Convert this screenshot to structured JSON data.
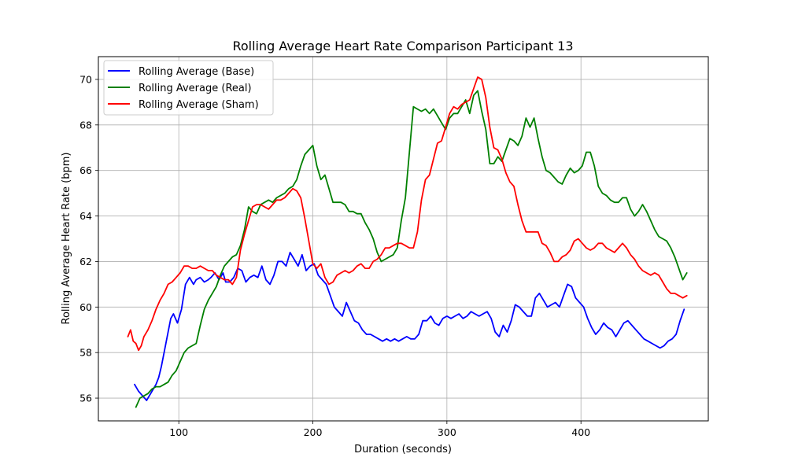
{
  "chart_data": {
    "type": "line",
    "title": "Rolling Average Heart Rate Comparison Participant 13",
    "xlabel": "Duration (seconds)",
    "ylabel": "Rolling Average Heart Rate (bpm)",
    "xlim": [
      40,
      495
    ],
    "ylim": [
      55,
      71
    ],
    "xticks": [
      100,
      200,
      300,
      400
    ],
    "yticks": [
      56,
      58,
      60,
      62,
      64,
      66,
      68,
      70
    ],
    "grid": true,
    "legend_position": "upper-left",
    "series": [
      {
        "name": "Rolling Average (Base)",
        "color": "#0000ff",
        "x": [
          67,
          70,
          73,
          76,
          78,
          80,
          83,
          85,
          87,
          89,
          92,
          94,
          96,
          99,
          102,
          105,
          108,
          111,
          113,
          116,
          119,
          122,
          124,
          127,
          130,
          133,
          135,
          138,
          141,
          144,
          147,
          150,
          153,
          156,
          159,
          162,
          165,
          168,
          171,
          174,
          177,
          180,
          183,
          186,
          189,
          192,
          195,
          198,
          201,
          204,
          207,
          210,
          213,
          216,
          219,
          222,
          225,
          228,
          231,
          234,
          237,
          240,
          243,
          246,
          249,
          252,
          255,
          258,
          261,
          264,
          267,
          270,
          273,
          276,
          279,
          282,
          285,
          288,
          291,
          294,
          297,
          300,
          303,
          306,
          309,
          312,
          315,
          318,
          321,
          324,
          327,
          330,
          333,
          336,
          339,
          342,
          345,
          348,
          351,
          354,
          357,
          360,
          363,
          366,
          369,
          372,
          375,
          378,
          381,
          384,
          387,
          390,
          393,
          396,
          399,
          402,
          405,
          408,
          411,
          414,
          417,
          420,
          423,
          426,
          429,
          432,
          435,
          438,
          441,
          444,
          447,
          450,
          453,
          456,
          459,
          462,
          465,
          468,
          471,
          474,
          477
        ],
        "values": [
          56.6,
          56.3,
          56.1,
          55.9,
          56.1,
          56.3,
          56.6,
          56.9,
          57.4,
          58.0,
          58.9,
          59.5,
          59.7,
          59.3,
          59.9,
          61.0,
          61.3,
          61.0,
          61.2,
          61.3,
          61.1,
          61.2,
          61.3,
          61.5,
          61.2,
          61.5,
          61.1,
          61.1,
          61.3,
          61.7,
          61.6,
          61.1,
          61.3,
          61.4,
          61.3,
          61.8,
          61.2,
          61.0,
          61.4,
          62.0,
          62.0,
          61.8,
          62.4,
          62.1,
          61.8,
          62.3,
          61.6,
          61.8,
          61.9,
          61.4,
          61.2,
          61.0,
          60.5,
          60.0,
          59.8,
          59.6,
          60.2,
          59.8,
          59.4,
          59.3,
          59.0,
          58.8,
          58.8,
          58.7,
          58.6,
          58.5,
          58.6,
          58.5,
          58.6,
          58.5,
          58.6,
          58.7,
          58.6,
          58.6,
          58.8,
          59.4,
          59.4,
          59.6,
          59.3,
          59.2,
          59.5,
          59.6,
          59.5,
          59.6,
          59.7,
          59.5,
          59.6,
          59.8,
          59.7,
          59.6,
          59.7,
          59.8,
          59.5,
          58.9,
          58.7,
          59.2,
          58.9,
          59.4,
          60.1,
          60.0,
          59.8,
          59.6,
          59.6,
          60.4,
          60.6,
          60.3,
          60.0,
          60.1,
          60.2,
          60.0,
          60.5,
          61.0,
          60.9,
          60.4,
          60.2,
          60.0,
          59.5,
          59.1,
          58.8,
          59.0,
          59.3,
          59.1,
          59.0,
          58.7,
          59.0,
          59.3,
          59.4,
          59.2,
          59.0,
          58.8,
          58.6,
          58.5,
          58.4,
          58.3,
          58.2,
          58.3,
          58.5,
          58.6,
          58.8,
          59.4,
          59.9
        ]
      },
      {
        "name": "Rolling Average (Real)",
        "color": "#008000",
        "x": [
          68,
          71,
          74,
          77,
          80,
          83,
          86,
          89,
          92,
          95,
          98,
          101,
          104,
          107,
          110,
          113,
          116,
          119,
          122,
          125,
          128,
          131,
          134,
          137,
          140,
          143,
          146,
          149,
          152,
          155,
          158,
          161,
          164,
          167,
          170,
          173,
          176,
          179,
          182,
          185,
          188,
          191,
          194,
          197,
          200,
          203,
          206,
          209,
          212,
          215,
          218,
          221,
          224,
          227,
          230,
          233,
          236,
          239,
          242,
          245,
          248,
          251,
          254,
          257,
          260,
          263,
          266,
          269,
          272,
          275,
          278,
          281,
          284,
          287,
          290,
          293,
          296,
          299,
          302,
          305,
          308,
          311,
          314,
          317,
          320,
          323,
          326,
          329,
          332,
          335,
          338,
          341,
          344,
          347,
          350,
          353,
          356,
          359,
          362,
          365,
          368,
          371,
          374,
          377,
          380,
          383,
          386,
          389,
          392,
          395,
          398,
          401,
          404,
          407,
          410,
          413,
          416,
          419,
          422,
          425,
          428,
          431,
          434,
          437,
          440,
          443,
          446,
          449,
          452,
          455,
          458,
          461,
          464,
          467,
          470,
          473,
          476,
          479
        ],
        "values": [
          55.6,
          56.0,
          56.1,
          56.2,
          56.4,
          56.5,
          56.5,
          56.6,
          56.7,
          57.0,
          57.2,
          57.6,
          58.0,
          58.2,
          58.3,
          58.4,
          59.2,
          59.9,
          60.3,
          60.6,
          60.9,
          61.4,
          61.8,
          62.0,
          62.2,
          62.3,
          62.7,
          63.4,
          64.4,
          64.2,
          64.1,
          64.5,
          64.6,
          64.7,
          64.6,
          64.8,
          64.9,
          65.0,
          65.2,
          65.3,
          65.6,
          66.2,
          66.7,
          66.9,
          67.1,
          66.2,
          65.6,
          65.8,
          65.2,
          64.6,
          64.6,
          64.6,
          64.5,
          64.2,
          64.2,
          64.1,
          64.1,
          63.7,
          63.4,
          63.0,
          62.4,
          62.0,
          62.1,
          62.2,
          62.3,
          62.6,
          63.8,
          64.8,
          66.8,
          68.8,
          68.7,
          68.6,
          68.7,
          68.5,
          68.7,
          68.4,
          68.1,
          67.8,
          68.3,
          68.5,
          68.5,
          68.8,
          69.1,
          68.5,
          69.3,
          69.5,
          68.6,
          67.8,
          66.3,
          66.3,
          66.6,
          66.4,
          66.9,
          67.4,
          67.3,
          67.1,
          67.5,
          68.3,
          67.9,
          68.3,
          67.4,
          66.6,
          66.0,
          65.9,
          65.7,
          65.5,
          65.4,
          65.8,
          66.1,
          65.9,
          66.0,
          66.2,
          66.8,
          66.8,
          66.2,
          65.3,
          65.0,
          64.9,
          64.7,
          64.6,
          64.6,
          64.8,
          64.8,
          64.3,
          64.0,
          64.2,
          64.5,
          64.2,
          63.8,
          63.4,
          63.1,
          63.0,
          62.9,
          62.6,
          62.2,
          61.7,
          61.2,
          61.5
        ]
      },
      {
        "name": "Rolling Average (Sham)",
        "color": "#ff0000",
        "x": [
          62,
          64,
          66,
          68,
          70,
          72,
          74,
          77,
          80,
          83,
          86,
          89,
          92,
          95,
          98,
          101,
          104,
          107,
          110,
          113,
          116,
          119,
          122,
          125,
          128,
          131,
          134,
          137,
          140,
          143,
          146,
          149,
          152,
          155,
          158,
          161,
          164,
          167,
          170,
          173,
          176,
          179,
          182,
          185,
          188,
          191,
          194,
          197,
          200,
          203,
          206,
          209,
          212,
          215,
          218,
          221,
          224,
          227,
          230,
          233,
          236,
          239,
          242,
          245,
          248,
          251,
          254,
          257,
          260,
          263,
          266,
          269,
          272,
          275,
          278,
          281,
          284,
          287,
          290,
          293,
          296,
          299,
          302,
          305,
          308,
          311,
          314,
          317,
          320,
          323,
          326,
          329,
          332,
          335,
          338,
          341,
          344,
          347,
          350,
          353,
          356,
          359,
          362,
          365,
          368,
          371,
          374,
          377,
          380,
          383,
          386,
          389,
          392,
          395,
          398,
          401,
          404,
          407,
          410,
          413,
          416,
          419,
          422,
          425,
          428,
          431,
          434,
          437,
          440,
          443,
          446,
          449,
          452,
          455,
          458,
          461,
          464,
          467,
          470,
          473,
          476,
          479
        ],
        "values": [
          58.7,
          59.0,
          58.5,
          58.4,
          58.1,
          58.3,
          58.7,
          59.0,
          59.4,
          59.9,
          60.3,
          60.6,
          61.0,
          61.1,
          61.3,
          61.5,
          61.8,
          61.8,
          61.7,
          61.7,
          61.8,
          61.7,
          61.6,
          61.6,
          61.4,
          61.3,
          61.2,
          61.2,
          61.0,
          61.3,
          62.5,
          63.2,
          63.8,
          64.4,
          64.5,
          64.5,
          64.4,
          64.3,
          64.5,
          64.7,
          64.7,
          64.8,
          65.0,
          65.2,
          65.1,
          64.8,
          63.9,
          62.9,
          61.9,
          61.7,
          61.9,
          61.3,
          61.0,
          61.1,
          61.4,
          61.5,
          61.6,
          61.5,
          61.6,
          61.8,
          61.9,
          61.7,
          61.7,
          62.0,
          62.1,
          62.3,
          62.6,
          62.6,
          62.7,
          62.8,
          62.8,
          62.7,
          62.6,
          62.6,
          63.3,
          64.7,
          65.6,
          65.8,
          66.5,
          67.2,
          67.3,
          67.9,
          68.5,
          68.8,
          68.7,
          68.9,
          69.0,
          69.1,
          69.6,
          70.1,
          70.0,
          69.2,
          67.9,
          67.0,
          66.9,
          66.5,
          65.9,
          65.5,
          65.3,
          64.5,
          63.8,
          63.3,
          63.3,
          63.3,
          63.3,
          62.8,
          62.7,
          62.4,
          62.0,
          62.0,
          62.2,
          62.3,
          62.5,
          62.9,
          63.0,
          62.8,
          62.6,
          62.5,
          62.6,
          62.8,
          62.8,
          62.6,
          62.5,
          62.4,
          62.6,
          62.8,
          62.6,
          62.3,
          62.1,
          61.8,
          61.6,
          61.5,
          61.4,
          61.5,
          61.4,
          61.1,
          60.8,
          60.6,
          60.6,
          60.5,
          60.4,
          60.5
        ]
      }
    ]
  }
}
